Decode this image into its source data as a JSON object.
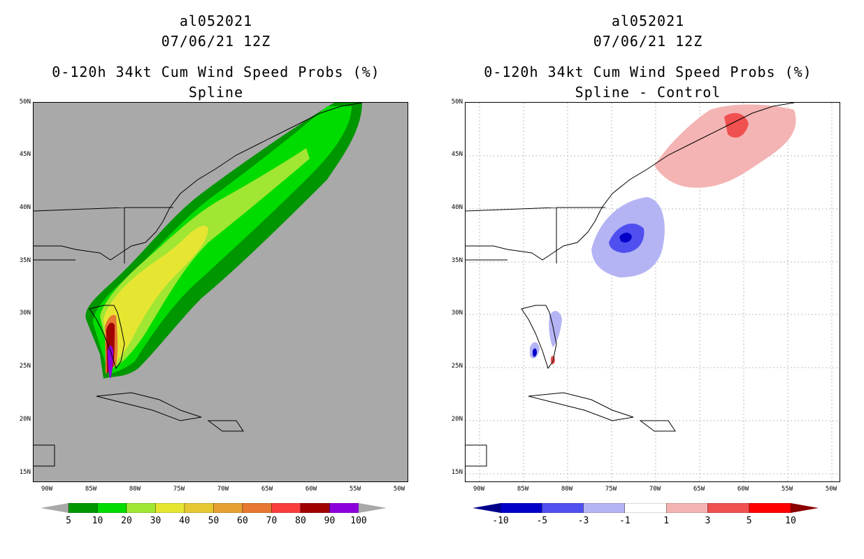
{
  "left": {
    "storm_id": "al052021",
    "datetime": "07/06/21 12Z",
    "product": "0-120h 34kt Cum Wind Speed Probs (%)",
    "subtitle": "Spline",
    "colorbar_labels": [
      "5",
      "10",
      "20",
      "30",
      "40",
      "50",
      "60",
      "70",
      "80",
      "90",
      "100"
    ],
    "colorbar_colors": [
      "#009600",
      "#00dc00",
      "#a0e632",
      "#e6e632",
      "#e6c832",
      "#e6a032",
      "#e67832",
      "#fa3c3c",
      "#a00000",
      "#8c00dc"
    ]
  },
  "right": {
    "storm_id": "al052021",
    "datetime": "07/06/21 12Z",
    "product": "0-120h 34kt Cum Wind Speed Probs (%)",
    "subtitle": "Spline - Control",
    "colorbar_labels": [
      "-10",
      "-5",
      "-3",
      "-1",
      "1",
      "3",
      "5",
      "10"
    ],
    "colorbar_colors": [
      "#0000c8",
      "#5050f0",
      "#b4b4f5",
      "#ffffff",
      "#f5b4b4",
      "#f05050",
      "#ff0000"
    ]
  },
  "lat_labels": [
    "50N",
    "45N",
    "40N",
    "35N",
    "30N",
    "25N",
    "20N",
    "15N"
  ],
  "lon_labels": [
    "90W",
    "85W",
    "80W",
    "75W",
    "70W",
    "65W",
    "60W",
    "55W",
    "50W"
  ]
}
